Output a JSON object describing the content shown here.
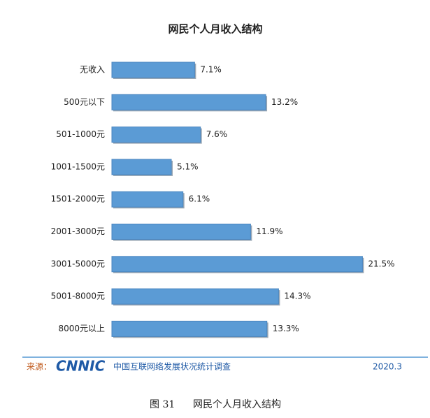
{
  "chart_data": {
    "type": "bar",
    "orientation": "horizontal",
    "title": "网民个人月收入结构",
    "categories": [
      "无收入",
      "500元以下",
      "501-1000元",
      "1001-1500元",
      "1501-2000元",
      "2001-3000元",
      "3001-5000元",
      "5001-8000元",
      "8000元以上"
    ],
    "values": [
      7.1,
      13.2,
      7.6,
      5.1,
      6.1,
      11.9,
      21.5,
      14.3,
      13.3
    ],
    "value_labels": [
      "7.1%",
      "13.2%",
      "7.6%",
      "5.1%",
      "6.1%",
      "11.9%",
      "21.5%",
      "14.3%",
      "13.3%"
    ],
    "color": "#5b9bd5"
  },
  "footer": {
    "source_label": "来源：",
    "logo": "CNNIC",
    "source": "中国互联网络发展状况统计调查",
    "date": "2020.3"
  },
  "caption": {
    "number": "图 31"
  }
}
